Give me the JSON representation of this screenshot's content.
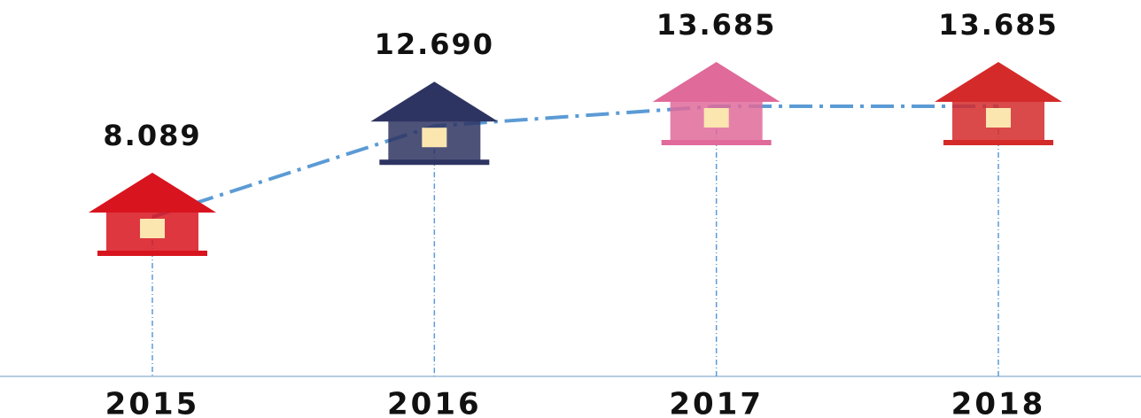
{
  "chart_data": {
    "type": "line",
    "categories": [
      "2015",
      "2016",
      "2017",
      "2018"
    ],
    "values": [
      8.089,
      12.69,
      13.685,
      13.685
    ],
    "value_labels": [
      "8.089",
      "12.690",
      "13.685",
      "13.685"
    ],
    "color": "#5b9bd5",
    "colors": [
      "#d8141e",
      "#2e3462",
      "#e06a9a",
      "#d42a2a"
    ]
  }
}
